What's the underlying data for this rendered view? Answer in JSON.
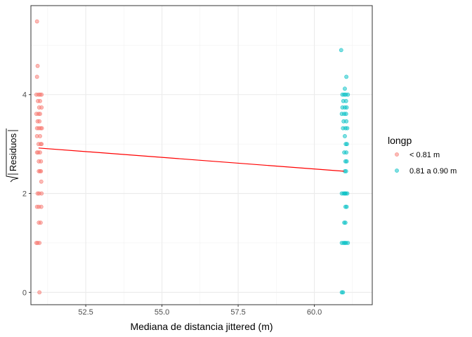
{
  "chart_data": {
    "type": "scatter",
    "title": "",
    "xlabel": "Mediana de distancia jittered (m)",
    "ylabel": "Residuos",
    "ylabel_transform": "sqrt-abs",
    "xlim": [
      50.7,
      61.9
    ],
    "ylim": [
      -0.25,
      5.8
    ],
    "x_ticks": [
      52.5,
      55.0,
      57.5,
      60.0
    ],
    "x_tick_labels": [
      "52.5",
      "55.0",
      "57.5",
      "60.0"
    ],
    "y_ticks": [
      0,
      2,
      4
    ],
    "y_tick_labels": [
      "0",
      "2",
      "4"
    ],
    "grid": true,
    "legend": {
      "title": "longp",
      "position": "right",
      "entries": [
        {
          "label": "< 0.81 m",
          "color": "#F8766D"
        },
        {
          "label": "0.81 a 0.90 m",
          "color": "#00BFC4"
        }
      ]
    },
    "series": [
      {
        "name": "< 0.81 m",
        "color": "#F8766D",
        "points": [
          [
            50.9,
            5.48
          ],
          [
            50.92,
            4.58
          ],
          [
            50.9,
            4.36
          ],
          [
            50.88,
            4.0
          ],
          [
            50.95,
            4.0
          ],
          [
            51.0,
            4.0
          ],
          [
            51.05,
            4.0
          ],
          [
            50.93,
            3.87
          ],
          [
            51.0,
            3.87
          ],
          [
            50.97,
            3.74
          ],
          [
            51.05,
            3.74
          ],
          [
            50.88,
            3.61
          ],
          [
            50.95,
            3.61
          ],
          [
            51.0,
            3.61
          ],
          [
            50.92,
            3.46
          ],
          [
            50.98,
            3.46
          ],
          [
            50.9,
            3.32
          ],
          [
            50.96,
            3.32
          ],
          [
            51.02,
            3.32
          ],
          [
            51.06,
            3.32
          ],
          [
            50.9,
            3.16
          ],
          [
            51.0,
            3.16
          ],
          [
            50.95,
            3.0
          ],
          [
            51.02,
            3.0
          ],
          [
            51.05,
            3.0
          ],
          [
            50.9,
            2.83
          ],
          [
            50.94,
            2.83
          ],
          [
            51.0,
            2.83
          ],
          [
            50.96,
            2.65
          ],
          [
            51.03,
            2.65
          ],
          [
            50.96,
            2.45
          ],
          [
            51.0,
            2.45
          ],
          [
            51.03,
            2.45
          ],
          [
            51.04,
            2.24
          ],
          [
            50.92,
            2.0
          ],
          [
            50.97,
            2.0
          ],
          [
            51.05,
            2.0
          ],
          [
            50.9,
            1.73
          ],
          [
            50.96,
            1.73
          ],
          [
            51.04,
            1.73
          ],
          [
            50.96,
            1.41
          ],
          [
            51.02,
            1.41
          ],
          [
            50.88,
            1.0
          ],
          [
            50.92,
            1.0
          ],
          [
            50.98,
            1.0
          ],
          [
            50.98,
            0.0
          ]
        ]
      },
      {
        "name": "0.81 a 0.90 m",
        "color": "#00BFC4",
        "points": [
          [
            60.88,
            4.9
          ],
          [
            61.05,
            4.36
          ],
          [
            61.0,
            4.12
          ],
          [
            60.92,
            4.0
          ],
          [
            60.98,
            4.0
          ],
          [
            61.03,
            4.0
          ],
          [
            61.1,
            4.0
          ],
          [
            60.95,
            3.87
          ],
          [
            61.04,
            3.87
          ],
          [
            60.92,
            3.74
          ],
          [
            61.0,
            3.74
          ],
          [
            61.06,
            3.74
          ],
          [
            60.9,
            3.61
          ],
          [
            60.98,
            3.61
          ],
          [
            61.04,
            3.61
          ],
          [
            60.96,
            3.46
          ],
          [
            61.05,
            3.46
          ],
          [
            60.94,
            3.32
          ],
          [
            61.02,
            3.32
          ],
          [
            61.08,
            3.32
          ],
          [
            61.0,
            3.16
          ],
          [
            61.03,
            3.0
          ],
          [
            61.07,
            3.0
          ],
          [
            60.98,
            2.83
          ],
          [
            61.05,
            2.83
          ],
          [
            61.02,
            2.65
          ],
          [
            61.06,
            2.65
          ],
          [
            61.0,
            2.45
          ],
          [
            61.04,
            2.45
          ],
          [
            60.9,
            2.0
          ],
          [
            60.96,
            2.0
          ],
          [
            61.0,
            2.0
          ],
          [
            61.03,
            2.0
          ],
          [
            61.08,
            2.0
          ],
          [
            61.02,
            1.73
          ],
          [
            61.06,
            1.73
          ],
          [
            60.98,
            1.41
          ],
          [
            61.02,
            1.41
          ],
          [
            60.9,
            1.0
          ],
          [
            60.96,
            1.0
          ],
          [
            61.0,
            1.0
          ],
          [
            61.04,
            1.0
          ],
          [
            61.1,
            1.0
          ],
          [
            60.9,
            0.0
          ],
          [
            60.94,
            0.0
          ]
        ]
      }
    ],
    "fit_line": {
      "color": "#FF0000",
      "points": [
        [
          50.95,
          2.92
        ],
        [
          60.97,
          2.45
        ]
      ]
    }
  }
}
